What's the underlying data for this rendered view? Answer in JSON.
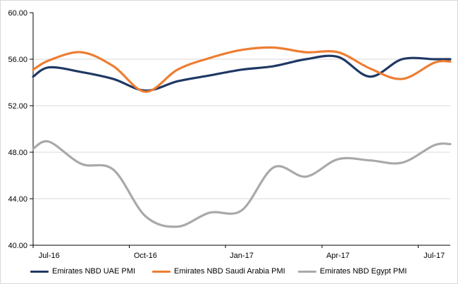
{
  "chart_data": {
    "type": "line",
    "title": "",
    "xlabel": "",
    "ylabel": "",
    "x": [
      "Jul-16",
      "Aug-16",
      "Sep-16",
      "Oct-16",
      "Nov-16",
      "Dec-16",
      "Jan-17",
      "Feb-17",
      "Mar-17",
      "Apr-17",
      "May-17",
      "Jun-17",
      "Jul-17"
    ],
    "x_major_tick_indices": [
      0,
      3,
      6,
      9,
      12
    ],
    "x_tick_labels": [
      "Jul-16",
      "Oct-16",
      "Jan-17",
      "Apr-17",
      "Jul-17"
    ],
    "y_ticks": [
      40,
      44,
      48,
      52,
      56,
      60
    ],
    "y_tick_labels": [
      "40.00",
      "44.00",
      "48.00",
      "52.00",
      "56.00",
      "60.00"
    ],
    "gridline_values": [
      44,
      48,
      52,
      56
    ],
    "ylim": [
      40,
      60
    ],
    "grid": "horizontal",
    "smooth": true,
    "legend_position": "bottom",
    "series": [
      {
        "key": "uae",
        "name": "Emirates NBD UAE PMI",
        "color": "#1F3864",
        "values": [
          55.3,
          54.9,
          54.3,
          53.3,
          54.1,
          54.6,
          55.1,
          55.4,
          56.0,
          56.2,
          54.5,
          56.0,
          56.0
        ],
        "edge_start": 54.5,
        "edge_end": 56.0
      },
      {
        "key": "saudi",
        "name": "Emirates NBD Saudi Arabia PMI",
        "color": "#ED7D31",
        "values": [
          55.9,
          56.6,
          55.4,
          53.2,
          55.1,
          56.1,
          56.8,
          57.0,
          56.6,
          56.6,
          55.2,
          54.3,
          55.7
        ],
        "edge_start": 55.1,
        "edge_end": 55.8
      },
      {
        "key": "egypt",
        "name": "Emirates NBD Egypt PMI",
        "color": "#A9A9A9",
        "values": [
          48.9,
          47.0,
          46.5,
          42.5,
          41.6,
          42.8,
          43.0,
          46.7,
          45.9,
          47.4,
          47.3,
          47.1,
          48.6
        ],
        "edge_start": 48.3,
        "edge_end": 48.7
      }
    ]
  },
  "colors": {
    "gridline": "#D9D9D9",
    "axis": "#000000",
    "text": "#000000",
    "background": "#FFFFFF"
  },
  "legend_lefts": [
    42,
    215,
    422
  ]
}
